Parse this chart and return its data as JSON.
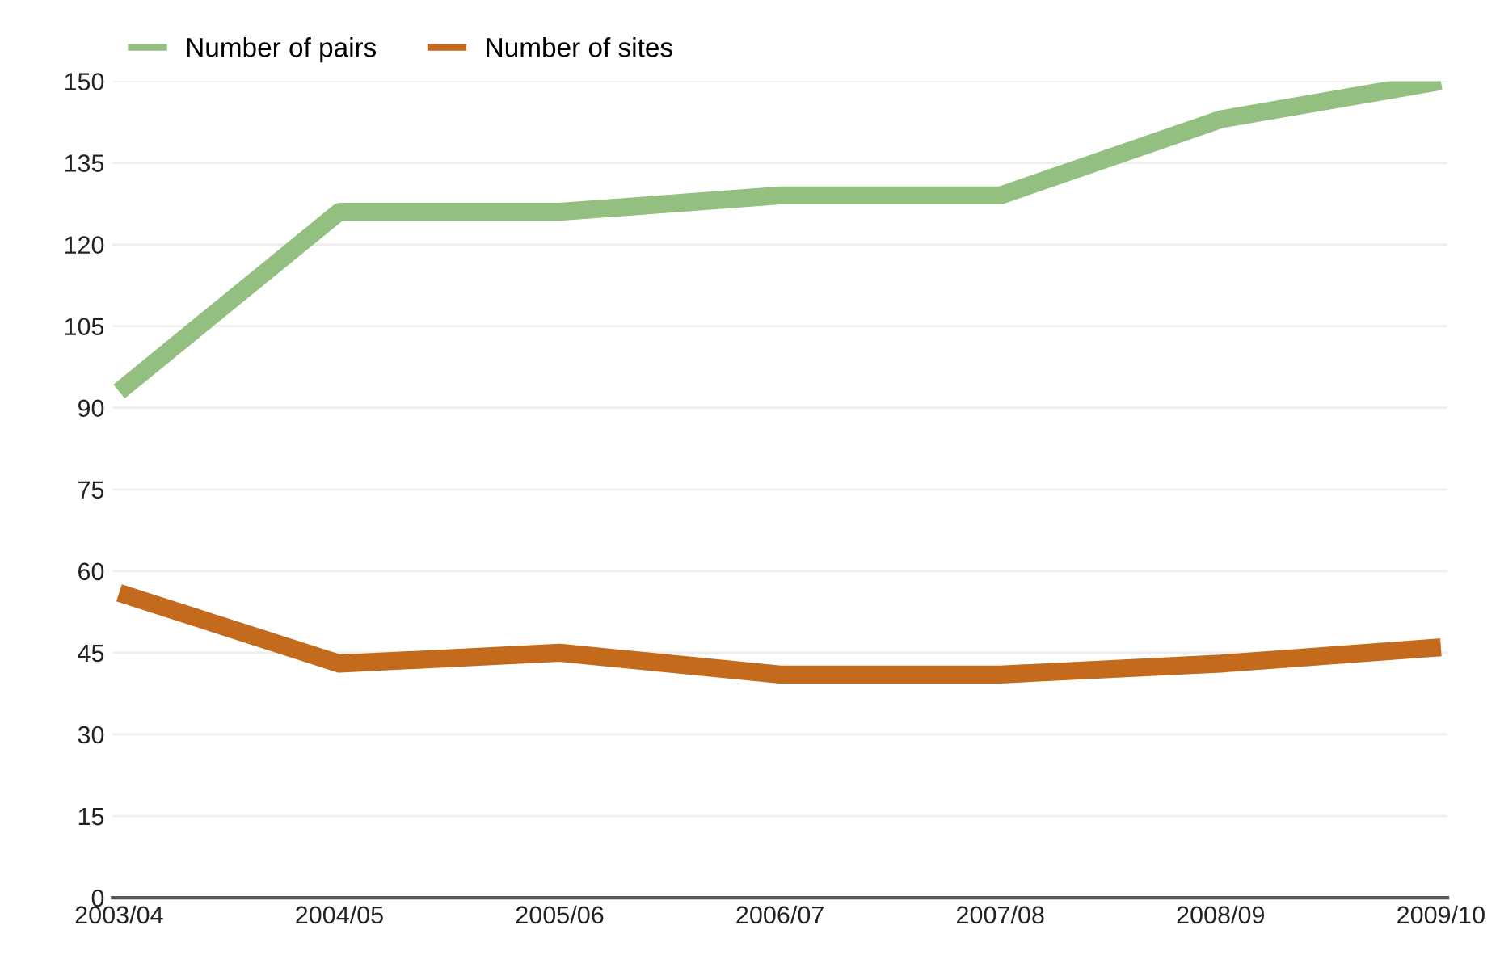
{
  "chart_data": {
    "type": "line",
    "categories": [
      "2003/04",
      "2004/05",
      "2005/06",
      "2006/07",
      "2007/08",
      "2008/09",
      "2009/10"
    ],
    "series": [
      {
        "name": "Number of pairs",
        "color": "#93bf80",
        "values": [
          93,
          126,
          126,
          129,
          129,
          143,
          150
        ]
      },
      {
        "name": "Number of sites",
        "color": "#c36a1c",
        "values": [
          56,
          43,
          45,
          41,
          41,
          43,
          46
        ]
      }
    ],
    "ylim": [
      0,
      150
    ],
    "yticks": [
      0,
      15,
      30,
      45,
      60,
      75,
      90,
      105,
      120,
      135,
      150
    ],
    "grid": "y",
    "legend": "top left",
    "marker": "none",
    "line_style": "solid"
  }
}
